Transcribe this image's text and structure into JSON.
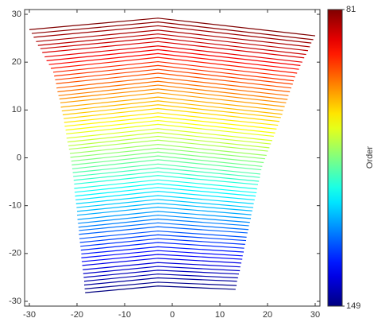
{
  "chart_data": {
    "type": "line",
    "xlim": [
      -31,
      31
    ],
    "ylim": [
      -31,
      31
    ],
    "xticks": [
      -30,
      -20,
      -10,
      0,
      10,
      20,
      30
    ],
    "yticks": [
      -30,
      -20,
      -10,
      0,
      10,
      20,
      30
    ],
    "grid": false,
    "colorbar": {
      "label": "Order",
      "ticks": [
        81,
        149
      ],
      "colormap": "jet",
      "reversed": true
    },
    "series": [
      {
        "x": [
          -30,
          -3,
          30
        ],
        "y": [
          26.8,
          29.2,
          25.5
        ]
      },
      {
        "x": [
          -29.5,
          -3,
          29.6
        ],
        "y": [
          26.0,
          28.4,
          24.7
        ]
      },
      {
        "x": [
          -29.1,
          -3,
          29.2
        ],
        "y": [
          25.2,
          27.6,
          24.0
        ]
      },
      {
        "x": [
          -28.6,
          -3,
          28.9
        ],
        "y": [
          24.3,
          26.7,
          23.2
        ]
      },
      {
        "x": [
          -28.2,
          -3,
          28.5
        ],
        "y": [
          23.5,
          25.9,
          22.4
        ]
      },
      {
        "x": [
          -27.7,
          -3,
          28.1
        ],
        "y": [
          22.8,
          25.1,
          21.6
        ]
      },
      {
        "x": [
          -27.3,
          -3,
          27.7
        ],
        "y": [
          22.0,
          24.3,
          20.9
        ]
      },
      {
        "x": [
          -26.8,
          -3,
          27.3
        ],
        "y": [
          21.1,
          23.4,
          20.0
        ]
      },
      {
        "x": [
          -26.4,
          -3,
          26.9
        ],
        "y": [
          20.3,
          22.6,
          19.3
        ]
      },
      {
        "x": [
          -25.9,
          -3,
          26.6
        ],
        "y": [
          19.5,
          21.8,
          18.5
        ]
      },
      {
        "x": [
          -25.5,
          -3,
          26.2
        ],
        "y": [
          18.7,
          21.0,
          17.7
        ]
      },
      {
        "x": [
          -25.0,
          -3,
          25.8
        ],
        "y": [
          17.9,
          20.1,
          16.9
        ]
      },
      {
        "x": [
          -24.8,
          -3,
          25.5
        ],
        "y": [
          17.1,
          19.3,
          16.1
        ]
      },
      {
        "x": [
          -24.6,
          -3,
          25.3
        ],
        "y": [
          16.3,
          18.5,
          15.4
        ]
      },
      {
        "x": [
          -24.4,
          -3,
          25.0
        ],
        "y": [
          15.5,
          17.7,
          14.6
        ]
      },
      {
        "x": [
          -24.3,
          -3,
          24.7
        ],
        "y": [
          14.6,
          16.8,
          13.8
        ]
      },
      {
        "x": [
          -24.1,
          -3,
          24.4
        ],
        "y": [
          13.8,
          16.0,
          13.0
        ]
      },
      {
        "x": [
          -23.9,
          -3,
          24.2
        ],
        "y": [
          13.0,
          15.2,
          12.2
        ]
      },
      {
        "x": [
          -23.7,
          -3,
          23.9
        ],
        "y": [
          12.3,
          14.4,
          11.5
        ]
      },
      {
        "x": [
          -23.5,
          -3,
          23.6
        ],
        "y": [
          11.5,
          13.6,
          10.7
        ]
      },
      {
        "x": [
          -23.4,
          -3,
          23.3
        ],
        "y": [
          10.6,
          12.7,
          9.9
        ]
      },
      {
        "x": [
          -23.2,
          -3,
          23.1
        ],
        "y": [
          9.8,
          11.9,
          9.1
        ]
      },
      {
        "x": [
          -23.0,
          -3,
          22.8
        ],
        "y": [
          9.0,
          11.1,
          8.4
        ]
      },
      {
        "x": [
          -22.8,
          -3,
          22.5
        ],
        "y": [
          8.2,
          10.3,
          7.6
        ]
      },
      {
        "x": [
          -22.7,
          -3,
          22.2
        ],
        "y": [
          7.4,
          9.4,
          6.8
        ]
      },
      {
        "x": [
          -22.6,
          -3,
          21.9
        ],
        "y": [
          6.6,
          8.6,
          6.0
        ]
      },
      {
        "x": [
          -22.4,
          -3,
          21.6
        ],
        "y": [
          5.8,
          7.8,
          5.2
        ]
      },
      {
        "x": [
          -22.3,
          -3,
          21.3
        ],
        "y": [
          5.0,
          7.0,
          4.5
        ]
      },
      {
        "x": [
          -22.2,
          -3,
          21.0
        ],
        "y": [
          4.1,
          6.1,
          3.6
        ]
      },
      {
        "x": [
          -22.0,
          -3,
          20.7
        ],
        "y": [
          3.3,
          5.3,
          2.9
        ]
      },
      {
        "x": [
          -21.8,
          -3,
          20.4
        ],
        "y": [
          2.5,
          4.5,
          2.1
        ]
      },
      {
        "x": [
          -21.7,
          -3,
          20.1
        ],
        "y": [
          1.8,
          3.7,
          1.4
        ]
      },
      {
        "x": [
          -21.5,
          -3,
          19.8
        ],
        "y": [
          0.9,
          2.8,
          0.5
        ]
      },
      {
        "x": [
          -21.4,
          -3,
          19.5
        ],
        "y": [
          0.1,
          2.0,
          -0.2
        ]
      },
      {
        "x": [
          -21.2,
          -3,
          19.2
        ],
        "y": [
          -0.7,
          1.2,
          -1.0
        ]
      },
      {
        "x": [
          -21.1,
          -3,
          18.9
        ],
        "y": [
          -1.5,
          0.4,
          -1.8
        ]
      },
      {
        "x": [
          -21.0,
          -3,
          18.7
        ],
        "y": [
          -2.3,
          -0.4,
          -2.5
        ]
      },
      {
        "x": [
          -20.9,
          -3,
          18.5
        ],
        "y": [
          -3.1,
          -1.3,
          -3.4
        ]
      },
      {
        "x": [
          -20.8,
          -3,
          18.4
        ],
        "y": [
          -3.9,
          -2.1,
          -4.1
        ]
      },
      {
        "x": [
          -20.7,
          -3,
          18.2
        ],
        "y": [
          -4.7,
          -2.9,
          -4.9
        ]
      },
      {
        "x": [
          -20.6,
          -3,
          18.0
        ],
        "y": [
          -5.5,
          -3.7,
          -5.6
        ]
      },
      {
        "x": [
          -20.6,
          -3,
          17.8
        ],
        "y": [
          -6.4,
          -4.6,
          -6.5
        ]
      },
      {
        "x": [
          -20.5,
          -3,
          17.7
        ],
        "y": [
          -7.2,
          -5.4,
          -7.3
        ]
      },
      {
        "x": [
          -20.4,
          -3,
          17.5
        ],
        "y": [
          -8.0,
          -6.2,
          -8.0
        ]
      },
      {
        "x": [
          -20.3,
          -3,
          17.3
        ],
        "y": [
          -8.8,
          -7.0,
          -8.8
        ]
      },
      {
        "x": [
          -20.2,
          -3,
          17.1
        ],
        "y": [
          -9.6,
          -7.9,
          -9.6
        ]
      },
      {
        "x": [
          -20.1,
          -3,
          17.0
        ],
        "y": [
          -10.4,
          -8.7,
          -10.4
        ]
      },
      {
        "x": [
          -20.0,
          -3,
          16.8
        ],
        "y": [
          -11.2,
          -9.5,
          -11.1
        ]
      },
      {
        "x": [
          -20.0,
          -3,
          16.6
        ],
        "y": [
          -12.0,
          -10.3,
          -11.9
        ]
      },
      {
        "x": [
          -19.9,
          -3,
          16.5
        ],
        "y": [
          -12.9,
          -11.2,
          -12.7
        ]
      },
      {
        "x": [
          -19.8,
          -3,
          16.3
        ],
        "y": [
          -13.7,
          -12.0,
          -13.5
        ]
      },
      {
        "x": [
          -19.7,
          -3,
          16.1
        ],
        "y": [
          -14.5,
          -12.8,
          -14.2
        ]
      },
      {
        "x": [
          -19.6,
          -3,
          16.0
        ],
        "y": [
          -15.2,
          -13.6,
          -15.0
        ]
      },
      {
        "x": [
          -19.6,
          -3,
          15.8
        ],
        "y": [
          -16.0,
          -14.4,
          -15.7
        ]
      },
      {
        "x": [
          -19.5,
          -3,
          15.6
        ],
        "y": [
          -16.9,
          -15.3,
          -16.6
        ]
      },
      {
        "x": [
          -19.4,
          -3,
          15.5
        ],
        "y": [
          -17.7,
          -16.1,
          -17.3
        ]
      },
      {
        "x": [
          -19.3,
          -3,
          15.3
        ],
        "y": [
          -18.5,
          -16.9,
          -18.1
        ]
      },
      {
        "x": [
          -19.2,
          -3,
          15.1
        ],
        "y": [
          -19.3,
          -17.7,
          -18.9
        ]
      },
      {
        "x": [
          -19.1,
          -3,
          15.0
        ],
        "y": [
          -20.1,
          -18.6,
          -19.7
        ]
      },
      {
        "x": [
          -19.1,
          -3,
          14.8
        ],
        "y": [
          -20.9,
          -19.4,
          -20.5
        ]
      },
      {
        "x": [
          -19.0,
          -3,
          14.7
        ],
        "y": [
          -21.7,
          -20.2,
          -21.2
        ]
      },
      {
        "x": [
          -18.9,
          -3,
          14.5
        ],
        "y": [
          -22.5,
          -21.0,
          -22.0
        ]
      },
      {
        "x": [
          -18.8,
          -3,
          14.3
        ],
        "y": [
          -23.4,
          -21.9,
          -22.8
        ]
      },
      {
        "x": [
          -18.7,
          -3,
          14.2
        ],
        "y": [
          -24.2,
          -22.7,
          -23.6
        ]
      },
      {
        "x": [
          -18.6,
          -3,
          14.0
        ],
        "y": [
          -25.0,
          -23.5,
          -24.3
        ]
      },
      {
        "x": [
          -18.5,
          -3,
          13.8
        ],
        "y": [
          -25.8,
          -24.3,
          -25.1
        ]
      },
      {
        "x": [
          -18.5,
          -3,
          13.6
        ],
        "y": [
          -26.6,
          -25.1,
          -25.8
        ]
      },
      {
        "x": [
          -18.4,
          -3,
          13.5
        ],
        "y": [
          -27.4,
          -26.0,
          -26.7
        ]
      },
      {
        "x": [
          -18.3,
          -3,
          13.3
        ],
        "y": [
          -28.2,
          -26.8,
          -27.5
        ]
      }
    ]
  }
}
